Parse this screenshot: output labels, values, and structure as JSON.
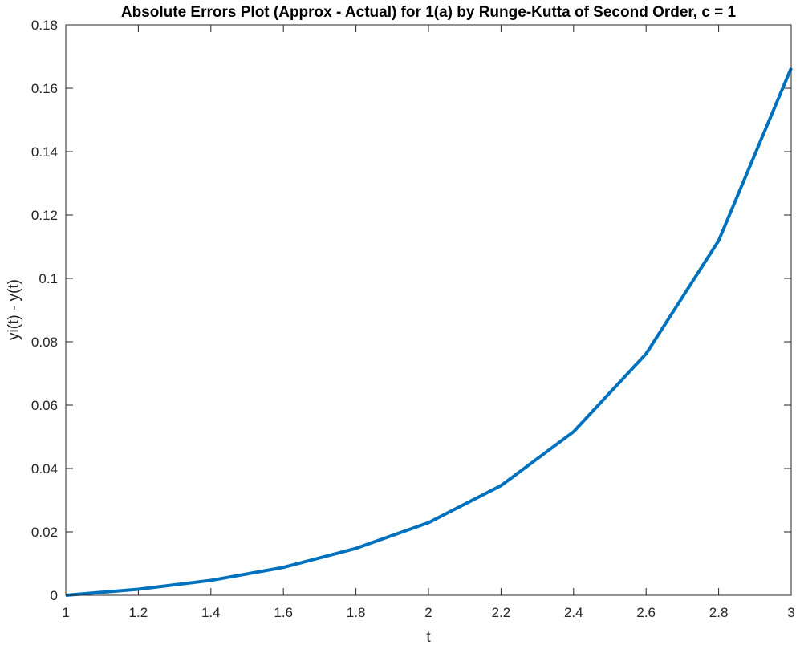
{
  "chart_data": {
    "type": "line",
    "title": "Absolute Errors Plot (Approx - Actual) for 1(a) by Runge-Kutta of Second Order, c = 1",
    "xlabel": "t",
    "ylabel": "yi(t) - y(t)",
    "xlim": [
      1,
      3
    ],
    "ylim": [
      0,
      0.18
    ],
    "xticks": [
      1,
      1.2,
      1.4,
      1.6,
      1.8,
      2,
      2.2,
      2.4,
      2.6,
      2.8,
      3
    ],
    "xtick_labels": [
      "1",
      "1.2",
      "1.4",
      "1.6",
      "1.8",
      "2",
      "2.2",
      "2.4",
      "2.6",
      "2.8",
      "3"
    ],
    "yticks": [
      0,
      0.02,
      0.04,
      0.06,
      0.08,
      0.1,
      0.12,
      0.14,
      0.16,
      0.18
    ],
    "ytick_labels": [
      "0",
      "0.02",
      "0.04",
      "0.06",
      "0.08",
      "0.1",
      "0.12",
      "0.14",
      "0.16",
      "0.18"
    ],
    "grid": false,
    "box": true,
    "series": [
      {
        "color": "#0072BD",
        "x": [
          1,
          1.2,
          1.4,
          1.6,
          1.8,
          2,
          2.2,
          2.4,
          2.6,
          2.8,
          3
        ],
        "y": [
          0,
          0.0019,
          0.0047,
          0.0088,
          0.0148,
          0.0229,
          0.0346,
          0.0516,
          0.0762,
          0.1119,
          0.1664
        ]
      }
    ]
  }
}
